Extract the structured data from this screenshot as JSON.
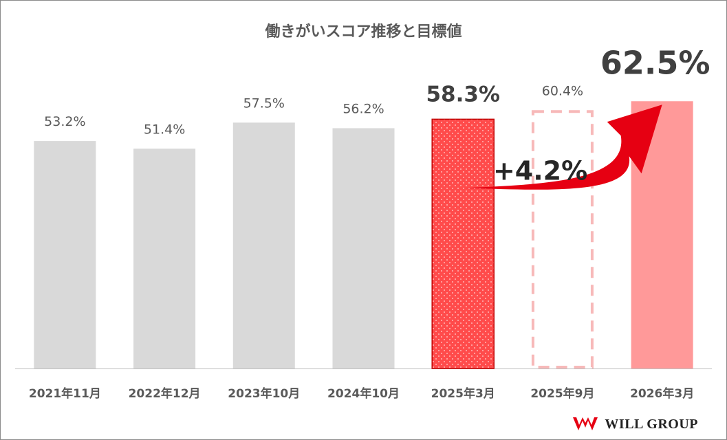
{
  "chart_data": {
    "type": "bar",
    "title": "働きがいスコア推移と目標値",
    "categories": [
      "2021年11月",
      "2022年12月",
      "2023年10月",
      "2024年10月",
      "2025年3月",
      "2025年9月",
      "2026年3月"
    ],
    "values": [
      53.2,
      51.4,
      57.5,
      56.2,
      58.3,
      60.4,
      62.5
    ],
    "labels": [
      "53.2%",
      "51.4%",
      "57.5%",
      "56.2%",
      "58.3%",
      "60.4%",
      "62.5%"
    ],
    "bar_styles": [
      "actual",
      "actual",
      "actual",
      "actual",
      "current",
      "interim-target",
      "target"
    ],
    "annotation": "+4.2%",
    "colors": {
      "actual": "#d9d9d9",
      "current": "#ff4b4b",
      "interim_target": "#f7b9b9",
      "target": "#ff9999",
      "arrow": "#e60012",
      "axis_text": "#595959"
    }
  },
  "logo": {
    "text": "WILL GROUP"
  }
}
